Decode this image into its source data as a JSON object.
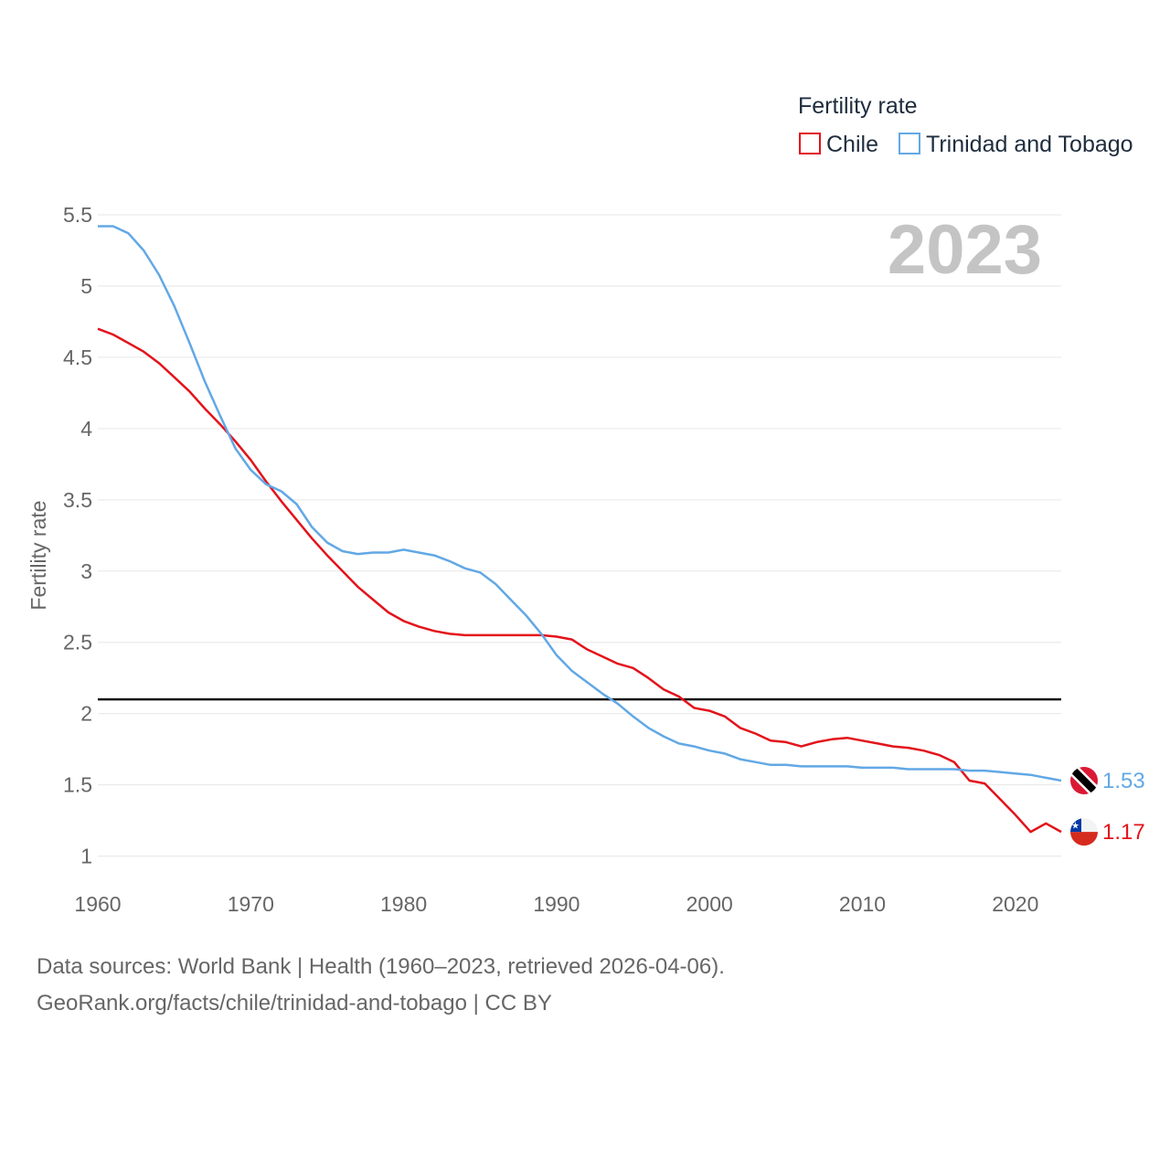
{
  "legend": {
    "title": "Fertility rate",
    "items": [
      "Chile",
      "Trinidad and Tobago"
    ]
  },
  "colors": {
    "chile": "#e3131b",
    "tt": "#62a8e5",
    "reference": "#111111",
    "grid": "#e6e6e6"
  },
  "year_label": "2023",
  "footer": {
    "line1": "Data sources: World Bank | Health (1960–2023, retrieved 2026-04-06).",
    "line2": "GeoRank.org/facts/chile/trinidad-and-tobago | CC BY"
  },
  "chart_data": {
    "type": "line",
    "title": "Fertility rate",
    "xlabel": "",
    "ylabel": "Fertility rate",
    "xlim": [
      1960,
      2023
    ],
    "ylim": [
      0.85,
      5.5
    ],
    "x_ticks": [
      1960,
      1970,
      1980,
      1990,
      2000,
      2010,
      2020
    ],
    "y_ticks": [
      1,
      1.5,
      2,
      2.5,
      3,
      3.5,
      4,
      4.5,
      5,
      5.5
    ],
    "y_tick_labels": [
      "1",
      "1.5",
      "2",
      "2.5",
      "3",
      "3.5",
      "4",
      "4.5",
      "5",
      "5.5"
    ],
    "grid": true,
    "reference_line": 2.1,
    "x": [
      1960,
      1961,
      1962,
      1963,
      1964,
      1965,
      1966,
      1967,
      1968,
      1969,
      1970,
      1971,
      1972,
      1973,
      1974,
      1975,
      1976,
      1977,
      1978,
      1979,
      1980,
      1981,
      1982,
      1983,
      1984,
      1985,
      1986,
      1987,
      1988,
      1989,
      1990,
      1991,
      1992,
      1993,
      1994,
      1995,
      1996,
      1997,
      1998,
      1999,
      2000,
      2001,
      2002,
      2003,
      2004,
      2005,
      2006,
      2007,
      2008,
      2009,
      2010,
      2011,
      2012,
      2013,
      2014,
      2015,
      2016,
      2017,
      2018,
      2019,
      2020,
      2021,
      2022,
      2023
    ],
    "series": [
      {
        "name": "Chile",
        "end_label": "1.17",
        "values": [
          4.7,
          4.66,
          4.6,
          4.54,
          4.46,
          4.36,
          4.26,
          4.14,
          4.03,
          3.91,
          3.78,
          3.63,
          3.49,
          3.36,
          3.23,
          3.11,
          3.0,
          2.89,
          2.8,
          2.71,
          2.65,
          2.61,
          2.58,
          2.56,
          2.55,
          2.55,
          2.55,
          2.55,
          2.55,
          2.55,
          2.54,
          2.52,
          2.45,
          2.4,
          2.35,
          2.32,
          2.25,
          2.17,
          2.12,
          2.04,
          2.02,
          1.98,
          1.9,
          1.86,
          1.81,
          1.8,
          1.77,
          1.8,
          1.82,
          1.83,
          1.81,
          1.79,
          1.77,
          1.76,
          1.74,
          1.71,
          1.66,
          1.53,
          1.51,
          1.4,
          1.29,
          1.17,
          1.23,
          1.17
        ]
      },
      {
        "name": "Trinidad and Tobago",
        "end_label": "1.53",
        "values": [
          5.42,
          5.42,
          5.37,
          5.25,
          5.08,
          4.86,
          4.6,
          4.33,
          4.09,
          3.86,
          3.71,
          3.61,
          3.56,
          3.47,
          3.31,
          3.2,
          3.14,
          3.12,
          3.13,
          3.13,
          3.15,
          3.13,
          3.11,
          3.07,
          3.02,
          2.99,
          2.91,
          2.8,
          2.69,
          2.56,
          2.41,
          2.3,
          2.22,
          2.14,
          2.07,
          1.98,
          1.9,
          1.84,
          1.79,
          1.77,
          1.74,
          1.72,
          1.68,
          1.66,
          1.64,
          1.64,
          1.63,
          1.63,
          1.63,
          1.63,
          1.62,
          1.62,
          1.62,
          1.61,
          1.61,
          1.61,
          1.61,
          1.6,
          1.6,
          1.59,
          1.58,
          1.57,
          1.55,
          1.53
        ]
      }
    ]
  }
}
